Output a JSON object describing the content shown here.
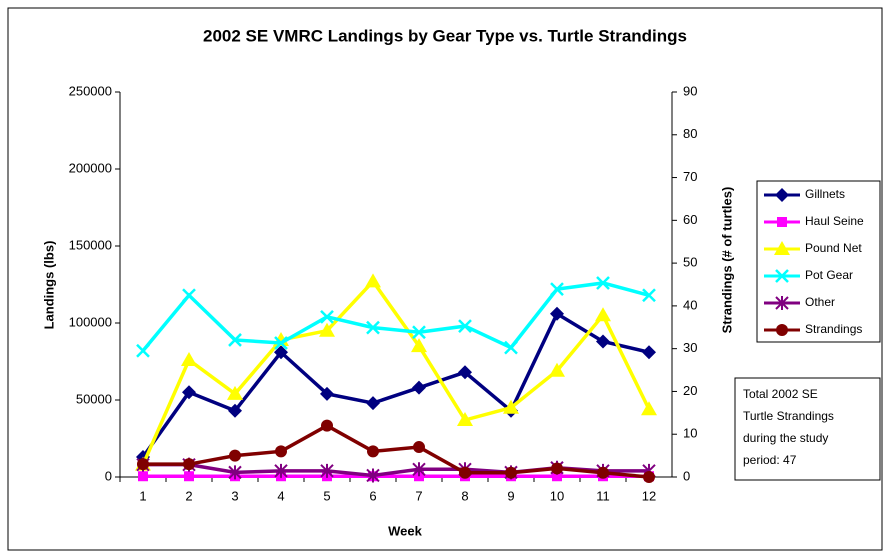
{
  "chart_data": {
    "type": "line",
    "title": "2002 SE VMRC Landings by Gear Type vs. Turtle Strandings",
    "x_label": "Week",
    "y_label": "Landings (lbs)",
    "y2_label": "Strandings (# of turtles)",
    "categories": [
      "1",
      "2",
      "3",
      "4",
      "5",
      "6",
      "7",
      "8",
      "9",
      "10",
      "11",
      "12"
    ],
    "ylim": [
      0,
      250000
    ],
    "yticks": [
      0,
      50000,
      100000,
      150000,
      200000,
      250000
    ],
    "y2lim": [
      0,
      90
    ],
    "y2ticks": [
      0,
      10,
      20,
      30,
      40,
      50,
      60,
      70,
      80,
      90
    ],
    "legend": "right",
    "series": [
      {
        "name": "Gillnets",
        "color": "#000080",
        "marker": "diamond",
        "values": [
          13000,
          55000,
          43000,
          81000,
          54000,
          48000,
          58000,
          68000,
          43000,
          106000,
          88000,
          81000
        ]
      },
      {
        "name": "Haul Seine",
        "color": "#ff00ff",
        "marker": "square",
        "values": [
          500,
          500,
          500,
          500,
          500,
          500,
          500,
          500,
          500,
          500,
          500,
          500
        ]
      },
      {
        "name": "Pound Net",
        "color": "#ffff00",
        "marker": "triangle",
        "values": [
          8000,
          76000,
          54000,
          89000,
          95000,
          127000,
          85000,
          37000,
          45000,
          69000,
          105000,
          44000
        ]
      },
      {
        "name": "Pot Gear",
        "color": "#00ffff",
        "marker": "x",
        "values": [
          82000,
          118000,
          89000,
          87000,
          104000,
          97000,
          94000,
          98000,
          84000,
          122000,
          126000,
          118000
        ]
      },
      {
        "name": "Other",
        "color": "#800080",
        "marker": "star",
        "values": [
          8000,
          8000,
          3000,
          4000,
          4000,
          1000,
          5000,
          5000,
          3000,
          6000,
          4000,
          4000
        ]
      },
      {
        "name": "Strandings",
        "color": "#800000",
        "marker": "circle",
        "axis": "y2",
        "values": [
          3,
          3,
          5,
          6,
          12,
          6,
          7,
          1,
          1,
          2,
          1,
          0
        ]
      }
    ],
    "note": [
      "Total 2002 SE",
      "Turtle Strandings",
      "during the study",
      "period: 47"
    ]
  }
}
